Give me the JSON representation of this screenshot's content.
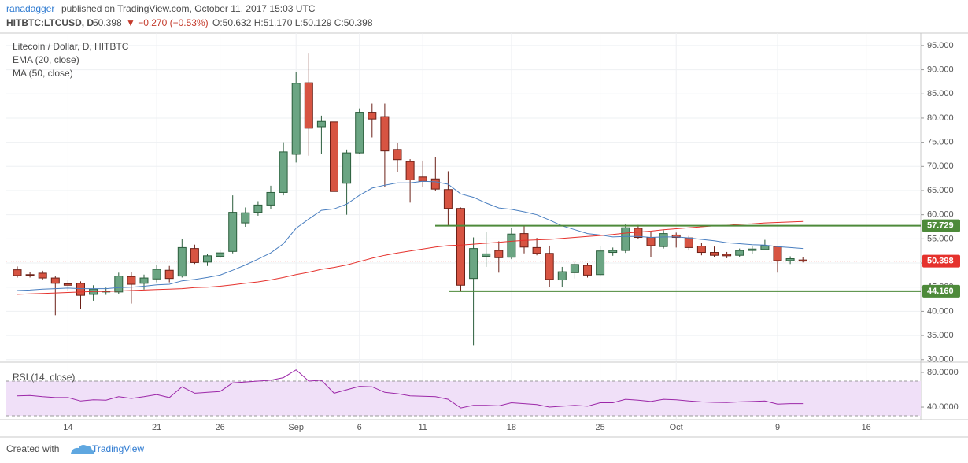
{
  "header": {
    "author": "ranadagger",
    "published": "published on TradingView.com, October 11, 2017 15:03 UTC",
    "symbol": "HITBTC:LTCUSD, D",
    "price": "50.398",
    "change": "▼ −0.270 (−0.53%)",
    "ohlc": "O:50.632 H:51.170 L:50.129 C:50.398"
  },
  "chart_data": [
    {
      "type": "candlestick",
      "title": "Litecoin / Dollar, D, HITBTC",
      "categories": [
        null,
        null,
        null,
        null,
        "14",
        null,
        null,
        null,
        null,
        null,
        null,
        "21",
        null,
        null,
        null,
        null,
        "26",
        null,
        null,
        null,
        null,
        null,
        "Sep",
        null,
        null,
        null,
        null,
        "6",
        null,
        null,
        null,
        null,
        "11",
        null,
        null,
        null,
        null,
        null,
        null,
        "18",
        null,
        null,
        null,
        null,
        null,
        null,
        "25",
        null,
        null,
        null,
        null,
        null,
        "Oct",
        null,
        null,
        null,
        null,
        null,
        null,
        null,
        "9",
        null,
        null,
        null,
        null,
        null,
        null,
        "16",
        null,
        null,
        null,
        null
      ],
      "open": [
        48.6,
        47.6,
        47.9,
        46.9,
        45.7,
        45.8,
        43.5,
        44.0,
        44.0,
        47.2,
        45.8,
        46.7,
        48.5,
        47.3,
        53.0,
        50.2,
        51.4,
        52.4,
        58.3,
        60.5,
        62.0,
        64.6,
        72.5,
        87.3,
        78.2,
        79.2,
        66.5,
        72.8,
        81.2,
        80.3,
        73.5,
        71.0,
        67.8,
        67.4,
        65.2,
        61.3,
        46.8,
        51.4,
        52.6,
        51.2,
        56.1,
        53.2,
        52.0,
        46.5,
        48.0,
        49.5,
        47.6,
        52.2,
        52.6,
        57.2,
        55.3,
        53.4,
        55.8,
        55.2,
        53.5,
        52.2,
        51.8,
        51.6,
        52.6,
        52.8,
        53.4,
        50.5,
        50.632,
        null,
        null,
        null,
        null,
        null,
        null,
        null,
        null,
        null
      ],
      "high": [
        49.3,
        48.2,
        48.4,
        47.4,
        46.4,
        46.2,
        45.4,
        44.9,
        48.0,
        48.1,
        47.6,
        49.6,
        49.4,
        55.0,
        53.8,
        51.8,
        52.8,
        64.0,
        61.5,
        62.8,
        66.0,
        75.0,
        89.6,
        93.5,
        80.5,
        79.5,
        73.5,
        82.0,
        83.0,
        83.0,
        74.8,
        71.5,
        71.2,
        72.0,
        69.0,
        61.5,
        55.3,
        56.5,
        54.5,
        57.3,
        57.8,
        55.2,
        53.6,
        49.2,
        50.2,
        50.0,
        53.5,
        53.2,
        58.0,
        57.9,
        56.5,
        56.8,
        56.3,
        55.6,
        54.2,
        53.4,
        52.3,
        53.0,
        53.5,
        54.8,
        53.6,
        51.4,
        51.17,
        null,
        null,
        null,
        null,
        null,
        null,
        null,
        null,
        null
      ],
      "low": [
        47.0,
        47.0,
        46.6,
        39.2,
        44.2,
        40.4,
        42.2,
        43.4,
        43.5,
        41.6,
        44.5,
        46.0,
        46.0,
        47.0,
        49.8,
        49.4,
        51.0,
        52.0,
        57.5,
        59.8,
        61.2,
        64.0,
        70.8,
        72.2,
        72.5,
        60.0,
        60.0,
        72.5,
        76.0,
        65.8,
        68.8,
        62.5,
        65.8,
        65.0,
        57.8,
        44.2,
        33.0,
        49.2,
        48.0,
        50.8,
        52.0,
        51.6,
        45.0,
        45.0,
        46.8,
        47.0,
        47.2,
        51.5,
        52.1,
        55.0,
        51.3,
        53.0,
        53.2,
        52.6,
        51.6,
        51.2,
        51.0,
        51.2,
        51.8,
        52.7,
        48.0,
        49.8,
        50.129,
        null,
        null,
        null,
        null,
        null,
        null,
        null,
        null,
        null
      ],
      "close": [
        47.4,
        47.5,
        46.9,
        45.8,
        45.4,
        43.3,
        44.6,
        44.2,
        47.3,
        45.6,
        46.9,
        48.7,
        46.8,
        53.2,
        50.1,
        51.5,
        52.1,
        60.5,
        60.4,
        62.0,
        64.6,
        73.0,
        87.2,
        77.9,
        79.3,
        64.8,
        72.8,
        81.2,
        79.8,
        73.2,
        71.4,
        67.2,
        66.9,
        65.3,
        61.3,
        45.4,
        53.0,
        51.9,
        51.1,
        56.0,
        53.3,
        52.0,
        46.6,
        48.2,
        49.7,
        47.5,
        52.5,
        52.6,
        57.3,
        55.3,
        53.6,
        56.1,
        55.3,
        53.2,
        52.2,
        51.6,
        51.5,
        52.6,
        52.9,
        53.6,
        50.5,
        50.9,
        50.398,
        null,
        null,
        null,
        null,
        null,
        null,
        null,
        null,
        null
      ],
      "up_color": "#6ba583",
      "down_color": "#d75442",
      "series": [
        {
          "name": "EMA (20, close)",
          "color": "#4a7fc0",
          "values": [
            44.3,
            44.4,
            44.6,
            44.7,
            44.8,
            44.7,
            44.7,
            44.7,
            44.9,
            45.0,
            45.2,
            45.5,
            45.6,
            46.3,
            46.6,
            47.0,
            47.5,
            48.5,
            49.6,
            50.8,
            52.1,
            54.0,
            57.2,
            59.1,
            60.9,
            61.2,
            62.2,
            64.0,
            65.5,
            66.1,
            66.6,
            66.6,
            66.9,
            66.8,
            66.3,
            64.3,
            63.6,
            62.4,
            61.4,
            61.1,
            60.6,
            60.0,
            58.9,
            57.7,
            56.9,
            56.1,
            55.8,
            55.4,
            55.5,
            55.5,
            55.3,
            55.4,
            55.4,
            55.2,
            54.9,
            54.6,
            54.2,
            54.0,
            53.8,
            53.7,
            53.4,
            53.2,
            53.0,
            null,
            null,
            null,
            null,
            null,
            null,
            null,
            null,
            null
          ]
        },
        {
          "name": "MA (50, close)",
          "color": "#e5312c",
          "values": [
            43.5,
            43.6,
            43.7,
            43.8,
            43.9,
            44.0,
            44.1,
            44.1,
            44.2,
            44.3,
            44.4,
            44.5,
            44.6,
            44.7,
            44.9,
            45.0,
            45.2,
            45.5,
            45.8,
            46.1,
            46.5,
            47.0,
            47.6,
            48.1,
            48.7,
            49.1,
            49.6,
            50.3,
            51.0,
            51.6,
            52.1,
            52.5,
            52.9,
            53.3,
            53.6,
            53.7,
            53.9,
            54.1,
            54.3,
            54.5,
            54.7,
            54.8,
            54.9,
            55.1,
            55.3,
            55.5,
            55.7,
            55.9,
            56.2,
            56.4,
            56.6,
            56.9,
            57.1,
            57.3,
            57.5,
            57.7,
            57.8,
            58.0,
            58.1,
            58.3,
            58.4,
            58.5,
            58.6,
            null,
            null,
            null,
            null,
            null,
            null,
            null,
            null,
            null
          ]
        }
      ],
      "ylim": [
        29.8,
        97.1
      ],
      "yticks": [
        {
          "value": 30,
          "label": "30.000"
        },
        {
          "value": 35,
          "label": "35.000"
        },
        {
          "value": 40,
          "label": "40.000"
        },
        {
          "value": 45,
          "label": "45.000"
        },
        {
          "value": 50,
          "label": "50.000"
        },
        {
          "value": 55,
          "label": "55.000"
        },
        {
          "value": 60,
          "label": "60.000"
        },
        {
          "value": 65,
          "label": "65.000"
        },
        {
          "value": 70,
          "label": "70.000"
        },
        {
          "value": 75,
          "label": "75.000"
        },
        {
          "value": 80,
          "label": "80.000"
        },
        {
          "value": 85,
          "label": "85.000"
        },
        {
          "value": 90,
          "label": "90.000"
        },
        {
          "value": 95,
          "label": "95.000"
        }
      ],
      "hlines": [
        {
          "value": 57.729,
          "label": "57.729",
          "color": "#4d8a3a"
        },
        {
          "value": 44.16,
          "label": "44.160",
          "color": "#4d8a3a"
        }
      ],
      "last_price": {
        "value": 50.398,
        "label": "50.398",
        "color": "#e5312c"
      },
      "grid": true
    },
    {
      "type": "line",
      "title": "RSI (14, close)",
      "color": "#9c27a8",
      "values": [
        53,
        53.5,
        52,
        51,
        51,
        47,
        48.5,
        48,
        52,
        50,
        52,
        54.5,
        51,
        63.5,
        56,
        57,
        58,
        68,
        69,
        70,
        71,
        74,
        83,
        70,
        71,
        56,
        60,
        64,
        63.5,
        57,
        55.5,
        53,
        52.5,
        52,
        49,
        39,
        42,
        42,
        41.5,
        45,
        44,
        43,
        40,
        41,
        42,
        41,
        45,
        45,
        49,
        48,
        46.5,
        49,
        48.5,
        47,
        46,
        45.5,
        45.3,
        46,
        46.5,
        47,
        43.5,
        44,
        44,
        null,
        null,
        null,
        null,
        null,
        null,
        null,
        null,
        null
      ],
      "band": [
        30,
        70
      ],
      "band_color": "#f0e0f8",
      "ylim": [
        26.4,
        89.1
      ],
      "yticks": [
        {
          "value": 40,
          "label": "40.0000"
        },
        {
          "value": 80,
          "label": "80.0000"
        }
      ]
    }
  ],
  "footer": {
    "created": "Created with",
    "brand": "TradingView"
  }
}
